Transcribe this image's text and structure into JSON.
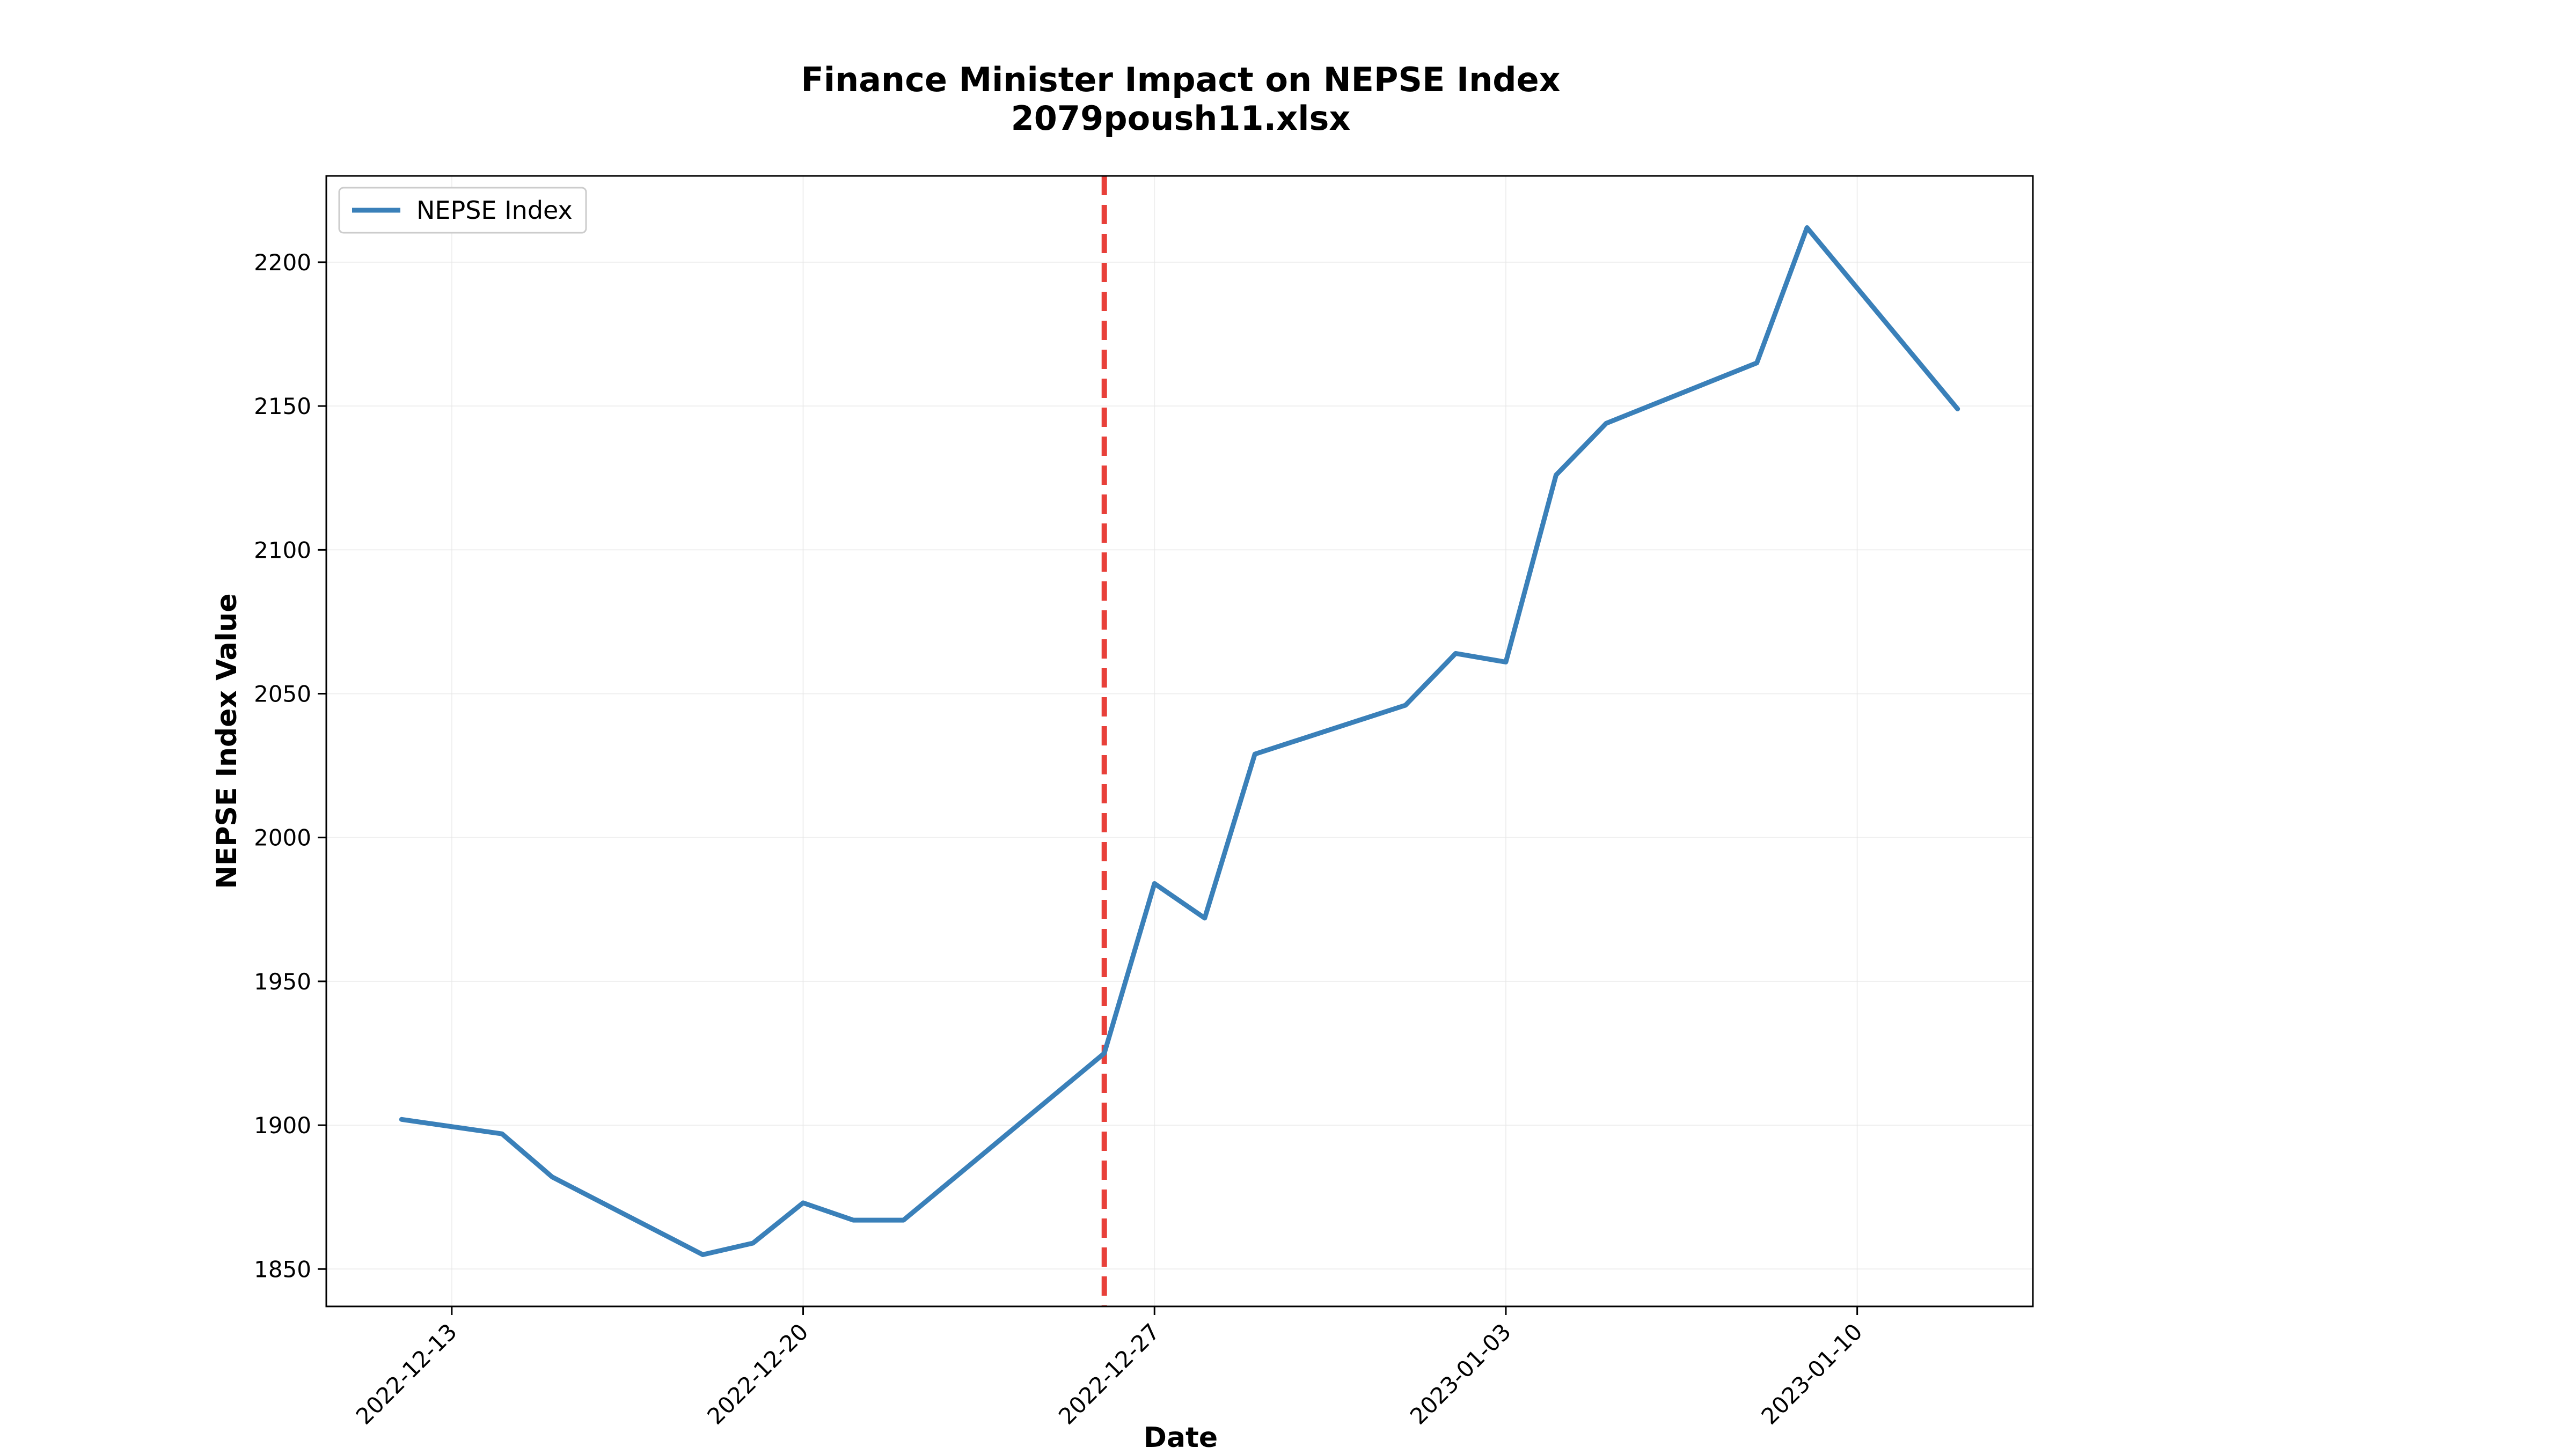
{
  "chart_data": {
    "type": "line",
    "title": "Finance Minister Impact on NEPSE Index",
    "subtitle": "2079poush11.xlsx",
    "xlabel": "Date",
    "ylabel": "NEPSE Index Value",
    "x": [
      "2022-12-12",
      "2022-12-14",
      "2022-12-15",
      "2022-12-18",
      "2022-12-19",
      "2022-12-20",
      "2022-12-21",
      "2022-12-22",
      "2022-12-26",
      "2022-12-27",
      "2022-12-28",
      "2022-12-29",
      "2023-01-01",
      "2023-01-02",
      "2023-01-03",
      "2023-01-04",
      "2023-01-05",
      "2023-01-08",
      "2023-01-09",
      "2023-01-12"
    ],
    "series": [
      {
        "name": "NEPSE Index",
        "color": "#3a80b9",
        "values": [
          1902,
          1897,
          1882,
          1855,
          1859,
          1873,
          1867,
          1867,
          1925,
          1984,
          1972,
          2029,
          2046,
          2064,
          2061,
          2126,
          2144,
          2165,
          2212,
          2149
        ]
      }
    ],
    "event_line": {
      "date": "2022-12-26",
      "color": "#e8403a",
      "style": "dashed"
    },
    "xlim": [
      "2022-12-10 12:00",
      "2023-01-13 12:00"
    ],
    "ylim": [
      1837,
      2230
    ],
    "xticks": [
      "2022-12-13",
      "2022-12-20",
      "2022-12-27",
      "2023-01-03",
      "2023-01-10"
    ],
    "yticks": [
      1850,
      1900,
      1950,
      2000,
      2050,
      2100,
      2150,
      2200
    ],
    "grid": true,
    "legend": "upper-left"
  }
}
